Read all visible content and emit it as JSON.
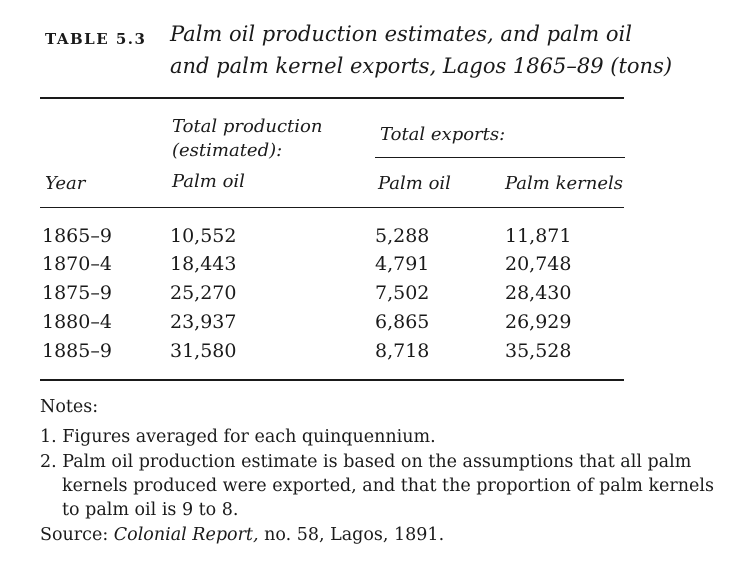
{
  "table": {
    "label": "TABLE 5.3",
    "title_line1": "Palm oil production estimates, and palm oil",
    "title_line2": "and palm kernel exports, Lagos 1865–89 (tons)",
    "headers": {
      "year": "Year",
      "production_group_line1": "Total production",
      "production_group_line2": "(estimated):",
      "production_palm_oil": "Palm oil",
      "exports_group": "Total exports:",
      "exports_palm_oil": "Palm oil",
      "exports_palm_kernels": "Palm kernels"
    },
    "rows": [
      {
        "year": "1865–9",
        "production": "10,552",
        "export_oil": "5,288",
        "export_kernels": "11,871"
      },
      {
        "year": "1870–4",
        "production": "18,443",
        "export_oil": "4,791",
        "export_kernels": "20,748"
      },
      {
        "year": "1875–9",
        "production": "25,270",
        "export_oil": "7,502",
        "export_kernels": "28,430"
      },
      {
        "year": "1880–4",
        "production": "23,937",
        "export_oil": "6,865",
        "export_kernels": "26,929"
      },
      {
        "year": "1885–9",
        "production": "31,580",
        "export_oil": "8,718",
        "export_kernels": "35,528"
      }
    ]
  },
  "notes": {
    "heading": "Notes:",
    "note1": "1. Figures averaged for each quinquennium.",
    "note2_line1": "2. Palm oil production estimate is based on the assumptions that all palm",
    "note2_line2": "kernels produced were exported, and that the proportion of palm kernels",
    "note2_line3": "to palm oil is 9 to 8.",
    "source_prefix": "Source: ",
    "source_title": "Colonial Report,",
    "source_rest": " no. 58, Lagos, 1891."
  }
}
